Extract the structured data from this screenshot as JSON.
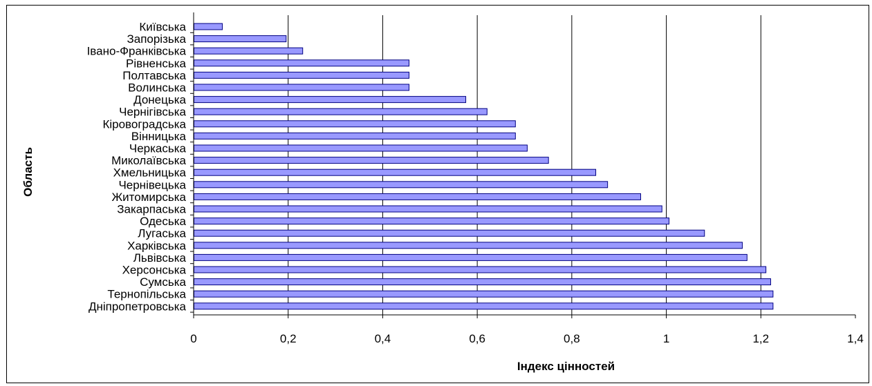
{
  "chart_data": {
    "type": "bar",
    "orientation": "horizontal",
    "xlabel": "Індекс цінностей",
    "ylabel": "Область",
    "xlim": [
      0,
      1.4
    ],
    "x_ticks": [
      "0",
      "0,2",
      "0,4",
      "0,6",
      "0,8",
      "1",
      "1,2",
      "1,4"
    ],
    "grid": "vertical gridlines",
    "legend": "none",
    "bar_color": "#9999FF",
    "bar_edge_color": "#000080",
    "categories": [
      "Київська",
      "Запорізька",
      "Івано-Франківська",
      "Рівненська",
      "Полтавська",
      "Волинська",
      "Донецька",
      "Чернігівська",
      "Кіровоградська",
      "Вінницька",
      "Черкаська",
      "Миколаївська",
      "Хмельницька",
      "Чернівецька",
      "Житомирська",
      "Закарпаська",
      "Одеська",
      "Лугаська",
      "Харківська",
      "Львівська",
      "Херсонська",
      "Сумська",
      "Тернопільська",
      "Дніпропетровська"
    ],
    "values": [
      0.06,
      0.195,
      0.23,
      0.455,
      0.455,
      0.455,
      0.575,
      0.62,
      0.68,
      0.68,
      0.705,
      0.75,
      0.85,
      0.875,
      0.945,
      0.99,
      1.005,
      1.08,
      1.16,
      1.17,
      1.21,
      1.22,
      1.225,
      1.225
    ]
  }
}
